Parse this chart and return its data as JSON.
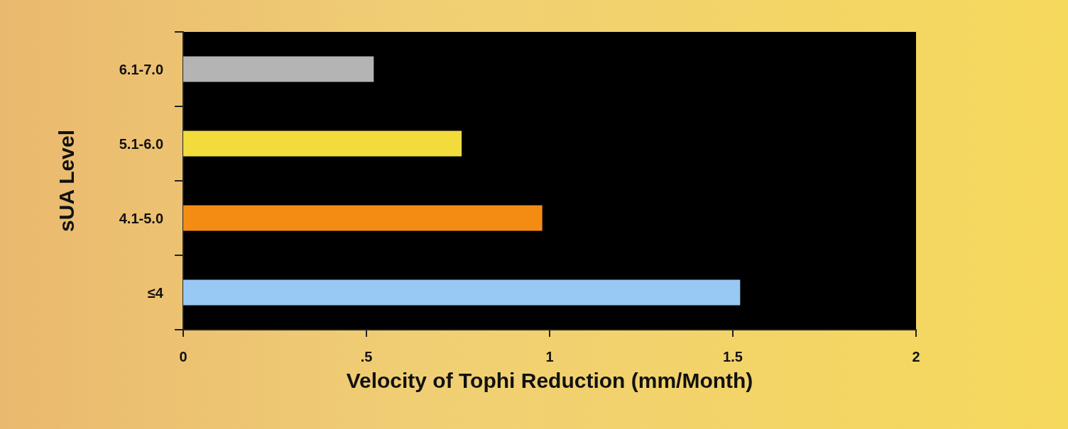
{
  "chart_data": {
    "type": "bar",
    "orientation": "horizontal",
    "xlabel": "Velocity of Tophi Reduction (mm/Month)",
    "ylabel": "sUA Level",
    "categories": [
      "6.1-7.0",
      "5.1-6.0",
      "4.1-5.0",
      "≤4"
    ],
    "values": [
      0.52,
      0.76,
      0.98,
      1.52
    ],
    "colors": [
      "#b4b4b4",
      "#f2dc3c",
      "#f48c14",
      "#98c8f4"
    ],
    "xlim": [
      0,
      2
    ],
    "xticks": [
      0,
      {
        "value": 0.5,
        "label": ".5"
      },
      1,
      1.5,
      2
    ],
    "grid": false
  }
}
